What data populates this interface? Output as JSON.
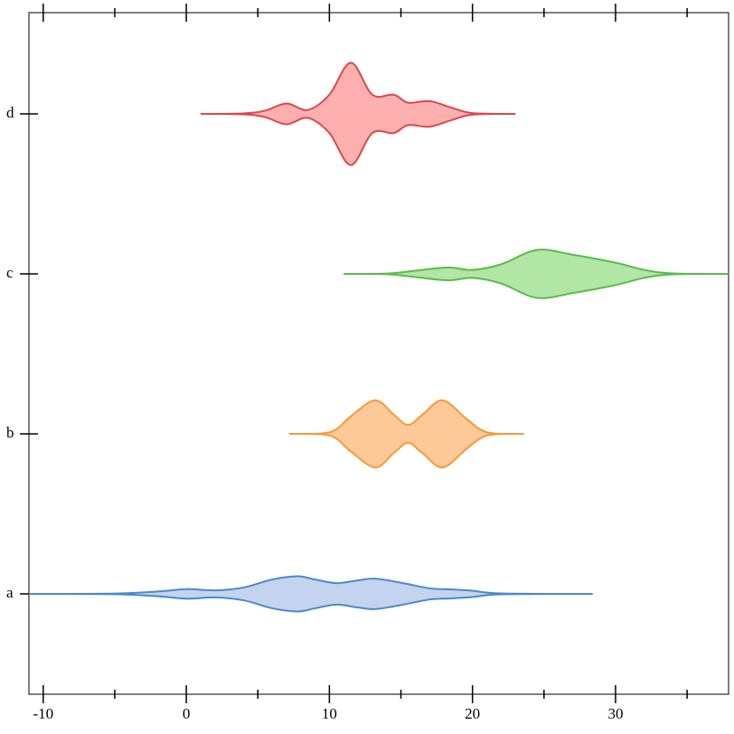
{
  "chart_data": {
    "type": "violin",
    "orientation": "horizontal",
    "categories": [
      "a",
      "b",
      "c",
      "d"
    ],
    "xlim": [
      -11,
      37.9
    ],
    "xticks": [
      -10,
      0,
      10,
      20,
      30
    ],
    "minor_xticks": [
      -5,
      5,
      15,
      25,
      35
    ],
    "series": [
      {
        "name": "a",
        "fill": "#c4d3ee",
        "color": "#4a8bc4",
        "x": [
          -11,
          -5,
          -2,
          0,
          2,
          4,
          6,
          7.8,
          9,
          10.5,
          12,
          13.2,
          15,
          17,
          18.5,
          20,
          22,
          28.4
        ],
        "half_width": [
          0,
          0.002,
          0.015,
          0.03,
          0.022,
          0.04,
          0.09,
          0.11,
          0.09,
          0.067,
          0.085,
          0.095,
          0.07,
          0.035,
          0.028,
          0.02,
          0.003,
          0
        ]
      },
      {
        "name": "b",
        "fill": "#fdc998",
        "color": "#f59a3a",
        "x": [
          7.2,
          9.5,
          10.5,
          11.5,
          13.2,
          14.5,
          15.5,
          16.5,
          17.9,
          19.5,
          20.5,
          21.5,
          23.6
        ],
        "half_width": [
          0,
          0.003,
          0.03,
          0.11,
          0.21,
          0.12,
          0.056,
          0.12,
          0.21,
          0.1,
          0.03,
          0.003,
          0
        ]
      },
      {
        "name": "c",
        "fill": "#b1e6a4",
        "color": "#5bbb4d",
        "x": [
          11,
          14,
          16,
          18.3,
          20,
          22,
          24.5,
          27,
          30,
          32,
          34,
          37.9
        ],
        "half_width": [
          0,
          0.002,
          0.02,
          0.04,
          0.025,
          0.06,
          0.15,
          0.12,
          0.07,
          0.025,
          0.003,
          0
        ]
      },
      {
        "name": "d",
        "fill": "#feb0b0",
        "color": "#d9494b",
        "x": [
          1,
          4,
          5.5,
          7,
          8.5,
          10,
          11.5,
          13,
          14.5,
          15.5,
          17,
          18.5,
          20,
          23
        ],
        "half_width": [
          0,
          0.003,
          0.02,
          0.065,
          0.025,
          0.12,
          0.32,
          0.12,
          0.12,
          0.07,
          0.08,
          0.04,
          0.005,
          0
        ]
      }
    ]
  }
}
